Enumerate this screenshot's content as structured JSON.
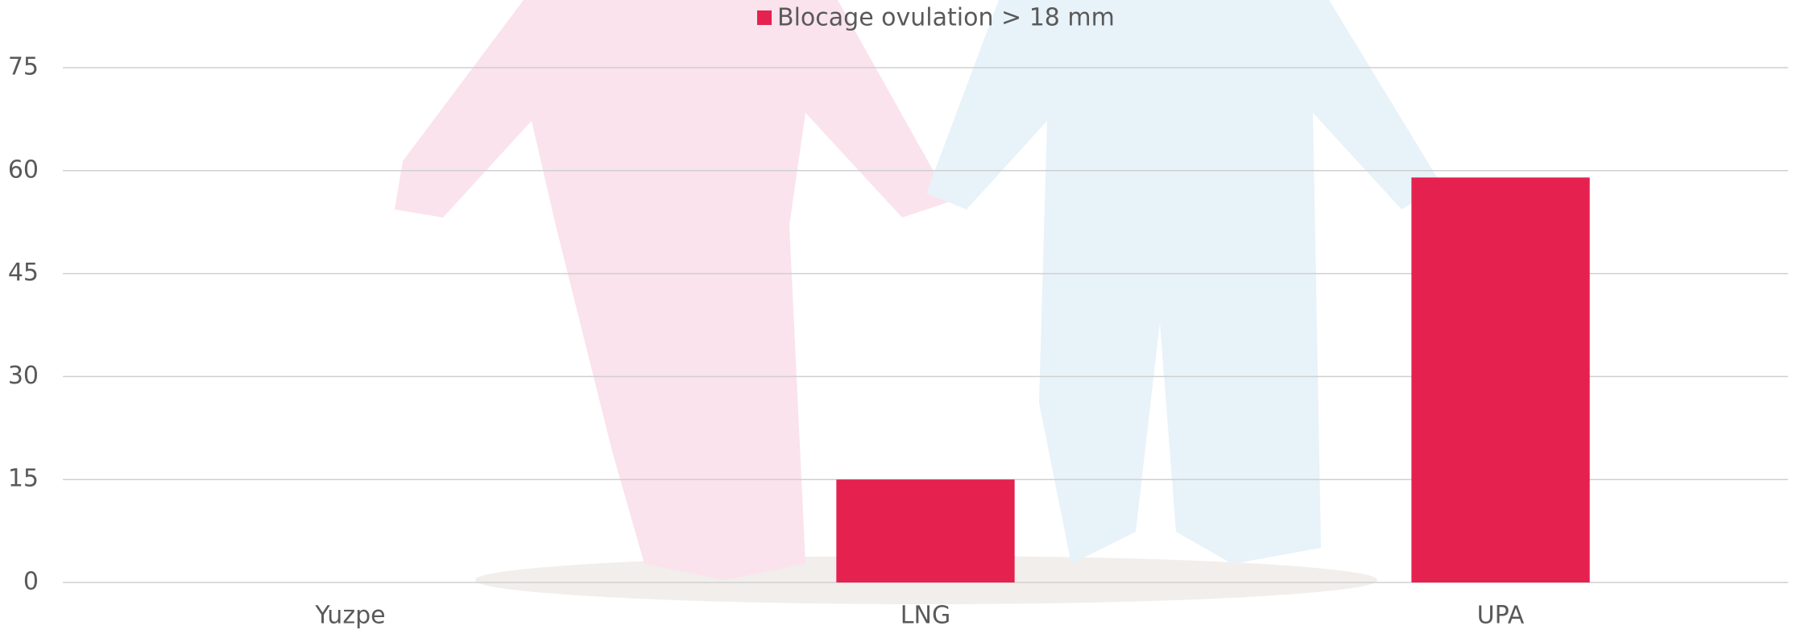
{
  "chart_data": {
    "type": "bar",
    "categories": [
      "Yuzpe",
      "LNG",
      "UPA"
    ],
    "series": [
      {
        "name": "Blocage ovulation > 18 mm",
        "color": "#e5214f",
        "values": [
          0,
          15,
          59
        ]
      }
    ],
    "ylim": [
      0,
      75
    ],
    "yticks": [
      0,
      15,
      30,
      45,
      60,
      75
    ],
    "grid": true,
    "legend": "top"
  }
}
